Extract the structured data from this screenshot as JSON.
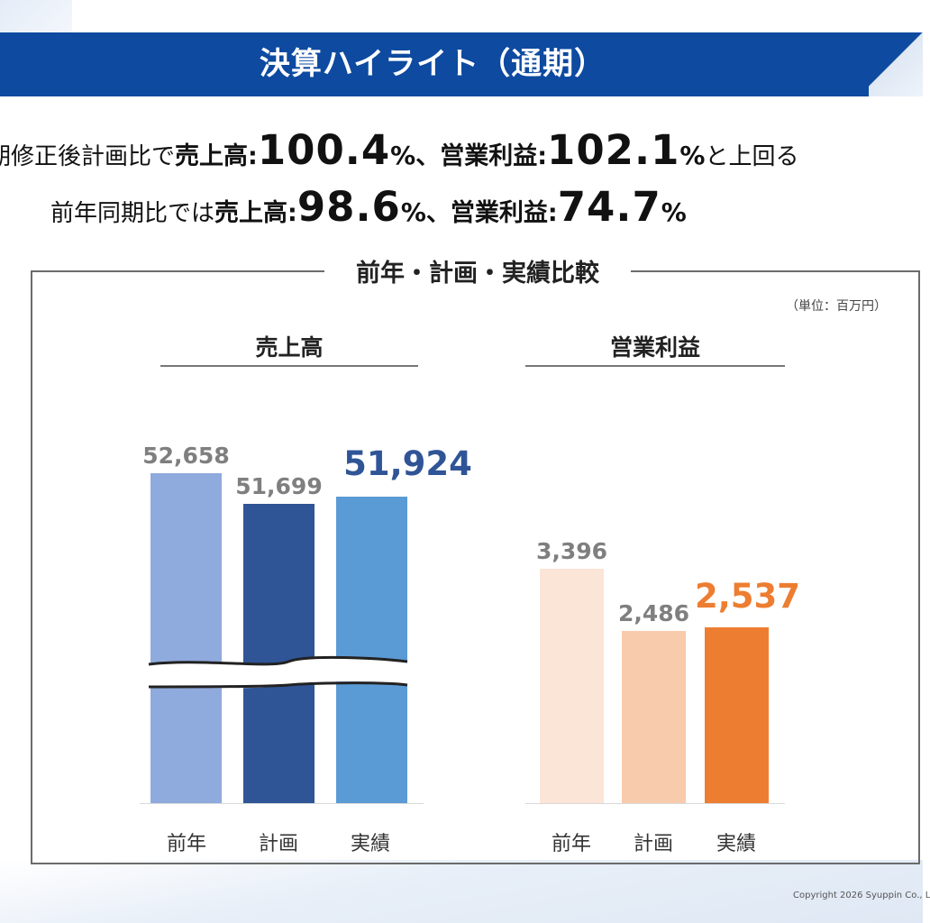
{
  "title": "決算ハイライト（通期）",
  "headline": {
    "line1": {
      "prefix": "期修正後計画比で",
      "sales_label": "売上高:",
      "sales_value": "100.4",
      "pct1": "%",
      "sep": "、",
      "profit_label": "営業利益:",
      "profit_value": "102.1",
      "pct2": "%",
      "suffix": "と上回る"
    },
    "line2": {
      "prefix": "前年同期比では",
      "sales_label": "売上高:",
      "sales_value": "98.6",
      "pct1": "%",
      "sep": "、",
      "profit_label": "営業利益:",
      "profit_value": "74.7",
      "pct2": "%"
    }
  },
  "panel_title": "前年・計画・実績比較",
  "unit": "（単位：百万円）",
  "footer": "Copyright 2026 Syuppin Co., L",
  "chart_data": [
    {
      "type": "bar",
      "title": "売上高",
      "categories": [
        "前年",
        "計画",
        "実績"
      ],
      "values": [
        52658,
        51699,
        51924
      ],
      "value_labels": [
        "52,658",
        "51,699",
        "51,924"
      ],
      "colors": [
        "#8faadc",
        "#2f5597",
        "#5b9bd5"
      ],
      "highlight_color": "#2f5597",
      "broken_axis": true
    },
    {
      "type": "bar",
      "title": "営業利益",
      "categories": [
        "前年",
        "計画",
        "実績"
      ],
      "values": [
        3396,
        2486,
        2537
      ],
      "value_labels": [
        "3,396",
        "2,486",
        "2,537"
      ],
      "colors": [
        "#fbe5d6",
        "#f8cbad",
        "#ed7d31"
      ],
      "highlight_color": "#ed7d31",
      "ylim": [
        0,
        3600
      ]
    }
  ]
}
